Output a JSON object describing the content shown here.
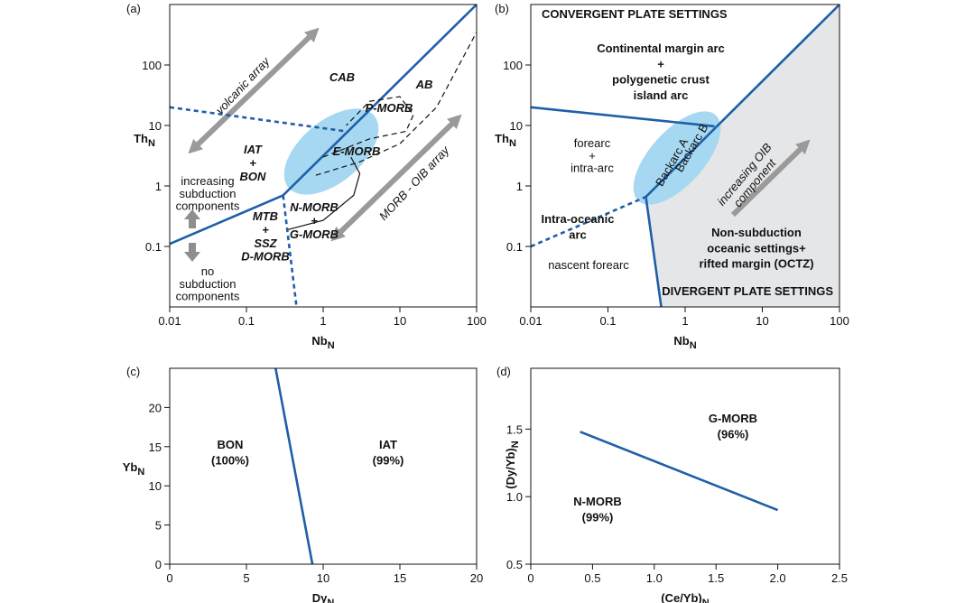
{
  "chart_data": [
    {
      "type": "line",
      "panel_label": "(a)",
      "x_label": "Nb",
      "x_label_sub": "N",
      "y_label": "Th",
      "y_label_sub": "N",
      "xlog": true,
      "ylog": true,
      "xlim": [
        0.01,
        100
      ],
      "ylim": [
        0.01,
        1000
      ],
      "xticks": [
        0.01,
        0.1,
        1,
        10,
        100
      ],
      "yticks": [
        0.1,
        1,
        10,
        100
      ],
      "series": [
        {
          "color": "#1f5fa8",
          "x": [
            0.01,
            0.3,
            100
          ],
          "values": [
            0.11,
            0.7,
            1000
          ]
        },
        {
          "color": "#1f5fa8",
          "dashed": true,
          "x": [
            0.01,
            2
          ],
          "values": [
            20,
            8
          ]
        },
        {
          "color": "#1f5fa8",
          "dashed": true,
          "x": [
            0.3,
            0.45
          ],
          "values": [
            0.7,
            0.01
          ]
        },
        {
          "color": "#111111",
          "x": [
            0.35,
            1,
            2.5,
            3,
            2.3
          ],
          "values": [
            0.19,
            0.27,
            0.7,
            1.6,
            3
          ]
        },
        {
          "color": "#111111",
          "dashed": true,
          "x": [
            0.8,
            3,
            10,
            30,
            100
          ],
          "values": [
            1.5,
            2.5,
            5,
            20,
            350
          ]
        },
        {
          "color": "#111111",
          "dashed": true,
          "x": [
            1,
            4,
            12,
            15,
            10,
            4,
            2
          ],
          "values": [
            3,
            6,
            8,
            15,
            30,
            25,
            10
          ]
        }
      ],
      "annotations": [
        [
          "CAB"
        ],
        [
          "AB"
        ],
        [
          "P-MORB"
        ],
        [
          "E-MORB"
        ],
        [
          "IAT",
          "+",
          "BON"
        ],
        [
          "N-MORB",
          "+",
          "G-MORB"
        ],
        [
          "MTB",
          "+",
          "SSZ",
          "D-MORB"
        ],
        [
          "volcanic array"
        ],
        [
          "MORB - OIB array"
        ],
        [
          "increasing",
          "subduction",
          "components"
        ],
        [
          "no",
          "subduction",
          "components"
        ]
      ]
    },
    {
      "type": "line",
      "panel_label": "(b)",
      "x_label": "Nb",
      "x_label_sub": "N",
      "y_label": "Th",
      "y_label_sub": "N",
      "xlog": true,
      "ylog": true,
      "xlim": [
        0.01,
        100
      ],
      "ylim": [
        0.01,
        1000
      ],
      "xticks": [
        0.01,
        0.1,
        1,
        10,
        100
      ],
      "yticks": [
        0.1,
        1,
        10,
        100
      ],
      "series": [
        {
          "color": "#e5e6e8",
          "fill": true,
          "x": [
            0.31,
            100,
            100,
            0.49
          ],
          "values": [
            0.66,
            1000,
            0.01,
            0.01
          ]
        },
        {
          "color": "#1f5fa8",
          "x": [
            0.01,
            2.4
          ],
          "values": [
            20,
            9.7
          ]
        },
        {
          "color": "#1f5fa8",
          "x": [
            0.49,
            0.31,
            100
          ],
          "values": [
            0.01,
            0.66,
            1000
          ]
        },
        {
          "color": "#1f5fa8",
          "dashed": true,
          "x": [
            0.01,
            0.31
          ],
          "values": [
            0.1,
            0.66
          ]
        }
      ],
      "annotations": [
        [
          "CONVERGENT PLATE SETTINGS"
        ],
        [
          "Continental margin arc",
          "+",
          "polygenetic crust",
          "island arc"
        ],
        [
          "forearc",
          "+",
          "intra-arc"
        ],
        [
          "Backarc A"
        ],
        [
          "Backarc B"
        ],
        [
          "increasing OIB",
          "component"
        ],
        [
          "Intra-oceanic",
          "arc"
        ],
        [
          "nascent forearc"
        ],
        [
          "Non-subduction",
          "oceanic settings+",
          "rifted margin (OCTZ)"
        ],
        [
          "DIVERGENT PLATE SETTINGS"
        ]
      ]
    },
    {
      "type": "line",
      "panel_label": "(c)",
      "x_label": "Dy",
      "x_label_sub": "N",
      "y_label": "Yb",
      "y_label_sub": "N",
      "xlim": [
        0,
        20
      ],
      "ylim": [
        0,
        25
      ],
      "xticks": [
        0,
        5,
        10,
        15,
        20
      ],
      "yticks": [
        0,
        5,
        10,
        15,
        20
      ],
      "series": [
        {
          "color": "#1f5fa8",
          "x": [
            6.9,
            9.3
          ],
          "values": [
            25,
            0
          ]
        }
      ],
      "annotations": [
        [
          "BON",
          "(100%)"
        ],
        [
          "IAT",
          "(99%)"
        ]
      ]
    },
    {
      "type": "line",
      "panel_label": "(d)",
      "x_label": "(Ce/Yb)",
      "x_label_sub": "N",
      "y_label": "(Dy/Yb)",
      "y_label_sub": "N",
      "xlim": [
        0,
        2.5
      ],
      "ylim": [
        0.5,
        1.95
      ],
      "xticks": [
        0,
        0.5,
        {
          "value": 1,
          "label": "1.0"
        },
        1.5,
        {
          "value": 2,
          "label": "2.0"
        },
        2.5
      ],
      "yticks": [
        0.5,
        {
          "value": 1,
          "label": "1.0"
        },
        1.5
      ],
      "series": [
        {
          "color": "#1f5fa8",
          "x": [
            0.4,
            2.0
          ],
          "values": [
            1.48,
            0.9
          ]
        }
      ],
      "annotations": [
        [
          "G-MORB",
          "(96%)"
        ],
        [
          "N-MORB",
          "(99%)"
        ]
      ]
    }
  ]
}
